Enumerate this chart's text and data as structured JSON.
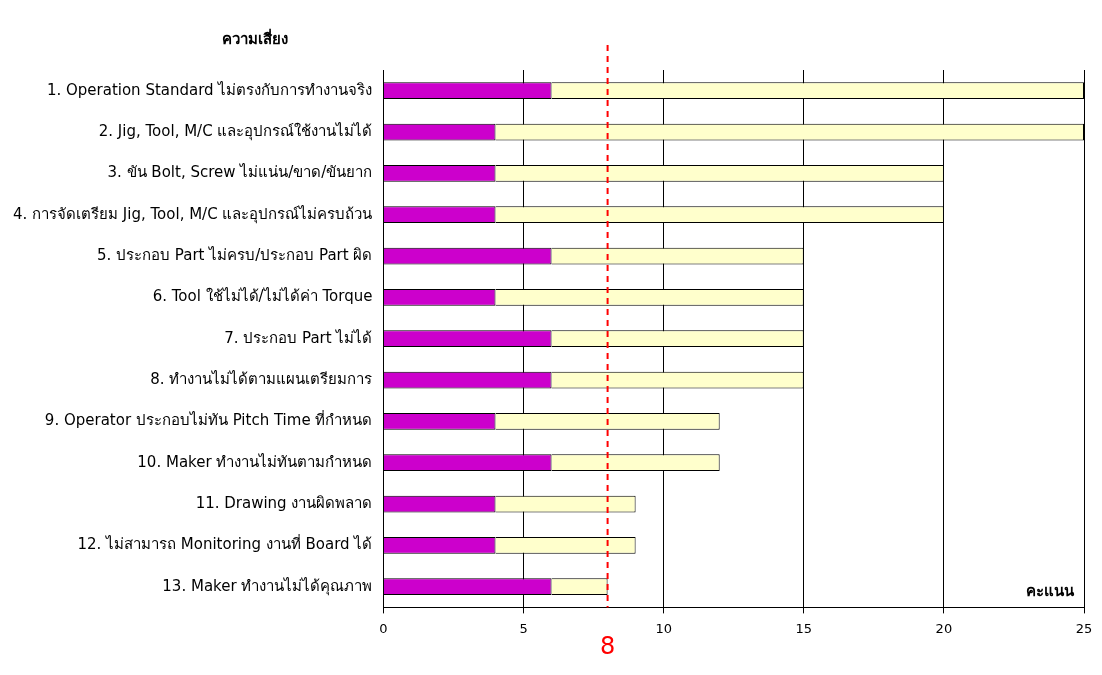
{
  "chart_data": {
    "type": "bar",
    "orientation": "horizontal",
    "stacked": true,
    "ylabel": "ความเสี่ยง",
    "xlabel": "คะแนน",
    "categories": [
      "1. Operation Standard ไม่ตรงกับการทำงานจริง",
      "2. Jig, Tool, M/C และอุปกรณ์ใช้งานไม่ได้",
      "3. ขัน Bolt, Screw ไม่แน่น/ขาด/ขันยาก",
      "4. การจัดเตรียม Jig, Tool, M/C และอุปกรณ์ไม่ครบถ้วน",
      "5. ประกอบ Part ไม่ครบ/ประกอบ Part ผิด",
      "6. Tool ใช้ไม่ได้/ไม่ได้ค่า Torque",
      "7. ประกอบ Part ไม่ได้",
      "8. ทำงานไม่ได้ตามแผนเตรียมการ",
      "9. Operator ประกอบไม่ทัน Pitch Time ที่กำหนด",
      "10. Maker ทำงานไม่ทันตามกำหนด",
      "11. Drawing งานผิดพลาด",
      "12. ไม่สามารถ Monitoring งานที่ Board ได้",
      "13. Maker ทำงานไม่ได้คุณภาพ"
    ],
    "series": [
      {
        "color": "#cc00cc",
        "values": [
          6,
          4,
          4,
          4,
          6,
          4,
          6,
          6,
          4,
          6,
          4,
          4,
          6
        ]
      },
      {
        "color": "#ffffcc",
        "values": [
          19,
          21,
          16,
          16,
          9,
          11,
          9,
          9,
          8,
          6,
          5,
          5,
          2
        ]
      }
    ],
    "xlim": [
      0,
      25
    ],
    "xticks": [
      0,
      5,
      10,
      15,
      20,
      25
    ],
    "grid": "x",
    "legend": false,
    "ref_lines": [
      {
        "axis": "x",
        "value": 8,
        "label": "8",
        "color": "#ff0000",
        "line_style": "dashed"
      }
    ]
  }
}
